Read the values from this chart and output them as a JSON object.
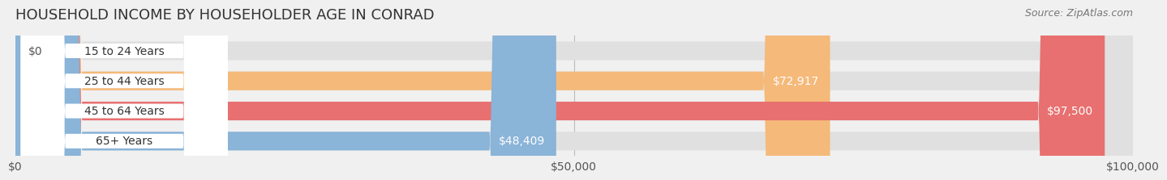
{
  "title": "HOUSEHOLD INCOME BY HOUSEHOLDER AGE IN CONRAD",
  "source": "Source: ZipAtlas.com",
  "categories": [
    "15 to 24 Years",
    "25 to 44 Years",
    "45 to 64 Years",
    "65+ Years"
  ],
  "values": [
    0,
    72917,
    97500,
    48409
  ],
  "bar_colors": [
    "#f4a0b0",
    "#f5b97a",
    "#e87070",
    "#8ab4d8"
  ],
  "label_colors": [
    "#555555",
    "#ffffff",
    "#ffffff",
    "#555555"
  ],
  "value_labels": [
    "$0",
    "$72,917",
    "$97,500",
    "$48,409"
  ],
  "xmax": 100000,
  "xticks": [
    0,
    50000,
    100000
  ],
  "xtick_labels": [
    "$0",
    "$50,000",
    "$100,000"
  ],
  "background_color": "#f0f0f0",
  "bar_background_color": "#e0e0e0",
  "title_fontsize": 13,
  "label_fontsize": 10,
  "value_fontsize": 10,
  "source_fontsize": 9
}
